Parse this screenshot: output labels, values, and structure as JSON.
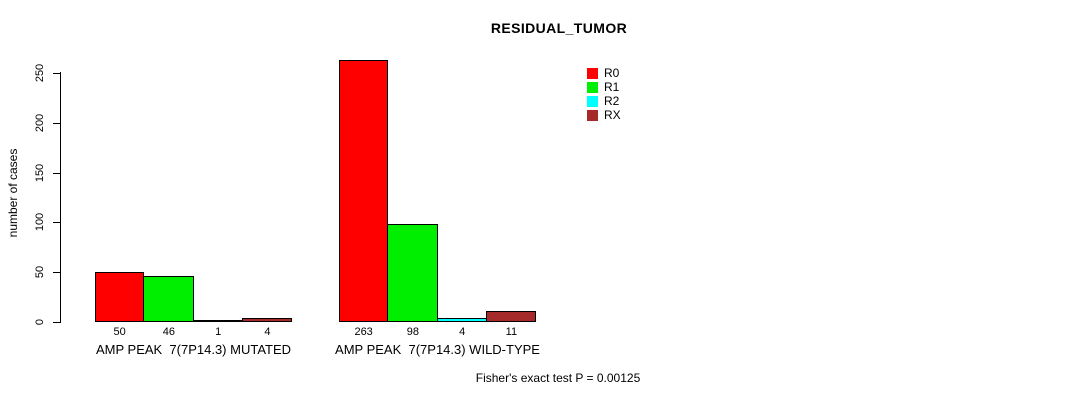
{
  "chart_data": {
    "type": "bar",
    "title": "RESIDUAL_TUMOR",
    "ylabel": "number of cases",
    "xlabel": "",
    "footer": "Fisher's exact test P = 0.00125",
    "categories": [
      "AMP PEAK  7(7P14.3) MUTATED",
      "AMP PEAK  7(7P14.3) WILD-TYPE"
    ],
    "series": [
      {
        "name": "R0",
        "color": "#ff0000",
        "values": [
          50,
          263
        ]
      },
      {
        "name": "R1",
        "color": "#00ee00",
        "values": [
          46,
          98
        ]
      },
      {
        "name": "R2",
        "color": "#00ffff",
        "values": [
          1,
          4
        ]
      },
      {
        "name": "RX",
        "color": "#a52a2a",
        "values": [
          4,
          11
        ]
      }
    ],
    "yticks": [
      0,
      50,
      100,
      150,
      200,
      250
    ],
    "ylim": [
      0,
      250
    ],
    "grid": false,
    "legend_position": "top-right",
    "bar_value_labels": true,
    "bar_border_color": "#000000",
    "background_color": "#ffffff"
  }
}
